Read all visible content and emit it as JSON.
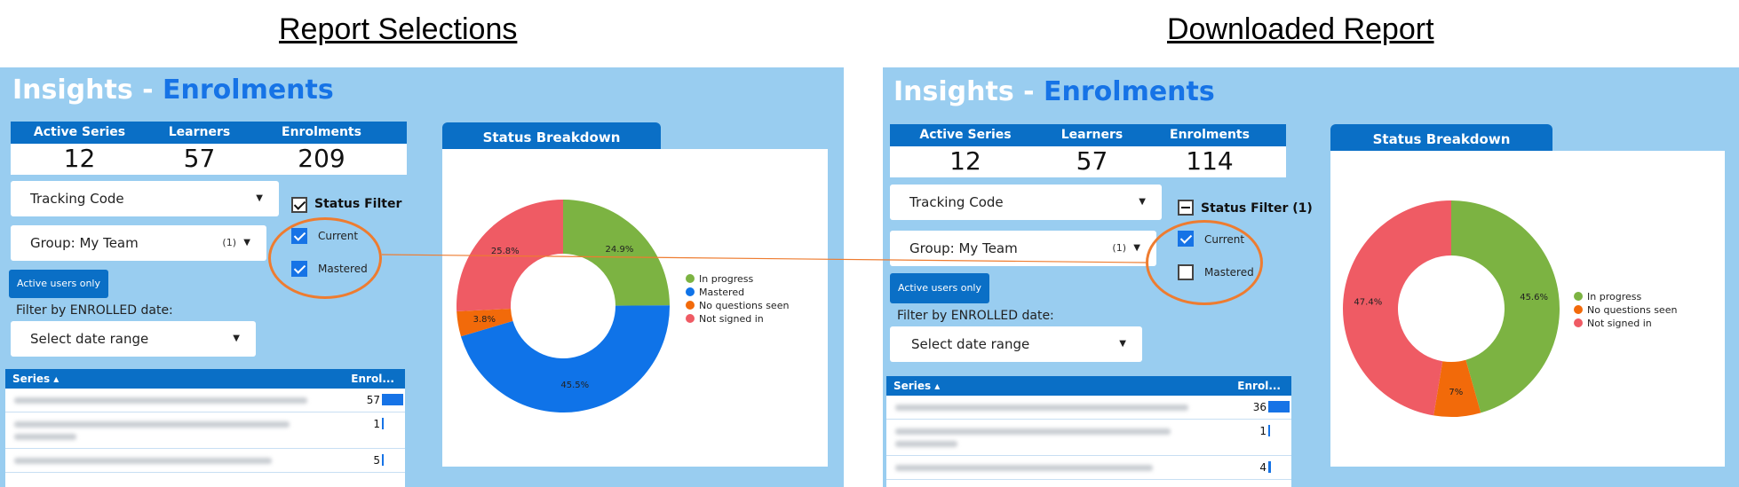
{
  "headings": {
    "left": "Report Selections",
    "right": "Downloaded Report"
  },
  "colors": {
    "panel_bg": "#99cdf0",
    "header_blue": "#0a6fc6",
    "accent_blue": "#1673e6",
    "annotation_orange": "#ee7c30",
    "in_progress": "#7cb342",
    "mastered": "#0f73e8",
    "no_questions_seen": "#f26a0a",
    "not_signed_in": "#ef5b64"
  },
  "left": {
    "title_prefix": "Insights - ",
    "title_accent": "Enrolments",
    "stats": {
      "headers": [
        "Active Series",
        "Learners",
        "Enrolments"
      ],
      "values": [
        "12",
        "57",
        "209"
      ]
    },
    "tracking_code": "Tracking Code",
    "group": {
      "label": "Group: My Team",
      "count": "(1)"
    },
    "active_users_button": "Active users only",
    "filter_date_label": "Filter by ENROLLED date:",
    "date_range": "Select date range",
    "status_filter": {
      "title": "Status Filter",
      "options": [
        {
          "label": "Current",
          "checked": true
        },
        {
          "label": "Mastered",
          "checked": true
        }
      ]
    },
    "status_tab": "Status Breakdown",
    "legend": [
      "In progress",
      "Mastered",
      "No questions seen",
      "Not signed in"
    ],
    "chart_data": {
      "type": "pie",
      "variant": "donut",
      "categories": [
        "In progress",
        "Mastered",
        "No questions seen",
        "Not signed in"
      ],
      "values": [
        24.9,
        45.5,
        3.8,
        25.8
      ],
      "labels": [
        "24.9%",
        "45.5%",
        "3.8%",
        "25.8%"
      ],
      "colors": [
        "#7cb342",
        "#0f73e8",
        "#f26a0a",
        "#ef5b64"
      ],
      "legend_position": "right"
    },
    "table": {
      "col_series": "Series",
      "col_enrol": "Enrol...",
      "rows": [
        {
          "value": "57",
          "frac": 1.0
        },
        {
          "value": "1",
          "frac": 0.02
        },
        {
          "value": "5",
          "frac": 0.09
        }
      ]
    }
  },
  "right": {
    "title_prefix": "Insights - ",
    "title_accent": "Enrolments",
    "stats": {
      "headers": [
        "Active Series",
        "Learners",
        "Enrolments"
      ],
      "values": [
        "12",
        "57",
        "114"
      ]
    },
    "tracking_code": "Tracking Code",
    "group": {
      "label": "Group: My Team",
      "count": "(1)"
    },
    "active_users_button": "Active users only",
    "filter_date_label": "Filter by ENROLLED date:",
    "date_range": "Select date range",
    "status_filter": {
      "title": "Status Filter (1)",
      "options": [
        {
          "label": "Current",
          "checked": true
        },
        {
          "label": "Mastered",
          "checked": false
        }
      ]
    },
    "status_tab": "Status Breakdown",
    "legend": [
      "In progress",
      "No questions seen",
      "Not signed in"
    ],
    "chart_data": {
      "type": "pie",
      "variant": "donut",
      "categories": [
        "In progress",
        "No questions seen",
        "Not signed in"
      ],
      "values": [
        45.6,
        7.0,
        47.4
      ],
      "labels": [
        "45.6%",
        "7%",
        "47.4%"
      ],
      "colors": [
        "#7cb342",
        "#f26a0a",
        "#ef5b64"
      ],
      "legend_position": "right"
    },
    "table": {
      "col_series": "Series",
      "col_enrol": "Enrol...",
      "rows": [
        {
          "value": "36",
          "frac": 1.0
        },
        {
          "value": "1",
          "frac": 0.03
        },
        {
          "value": "4",
          "frac": 0.11
        }
      ]
    }
  }
}
